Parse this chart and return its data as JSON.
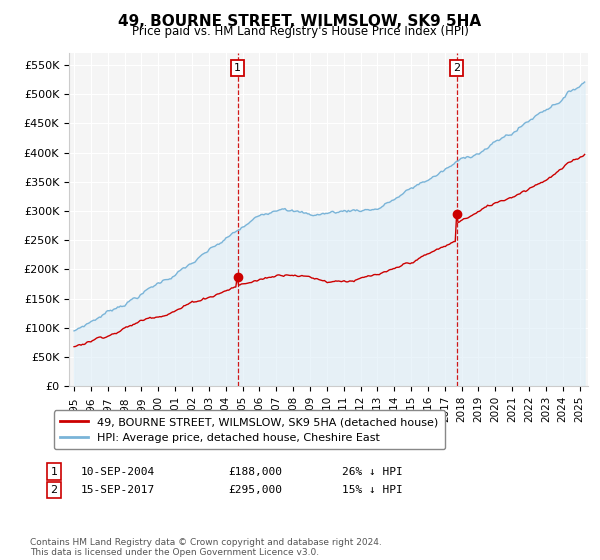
{
  "title": "49, BOURNE STREET, WILMSLOW, SK9 5HA",
  "subtitle": "Price paid vs. HM Land Registry's House Price Index (HPI)",
  "ylabel_ticks": [
    "£0",
    "£50K",
    "£100K",
    "£150K",
    "£200K",
    "£250K",
    "£300K",
    "£350K",
    "£400K",
    "£450K",
    "£500K",
    "£550K"
  ],
  "ytick_values": [
    0,
    50000,
    100000,
    150000,
    200000,
    250000,
    300000,
    350000,
    400000,
    450000,
    500000,
    550000
  ],
  "ylim": [
    0,
    570000
  ],
  "xlim_start": 1994.7,
  "xlim_end": 2025.5,
  "hpi_color": "#7ab4d8",
  "hpi_fill_color": "#ddeef7",
  "price_color": "#cc0000",
  "marker_color": "#cc0000",
  "sale1_x": 2004.71,
  "sale1_y": 188000,
  "sale1_label": "1",
  "sale1_date": "10-SEP-2004",
  "sale1_price": "£188,000",
  "sale1_hpi": "26% ↓ HPI",
  "sale2_x": 2017.71,
  "sale2_y": 295000,
  "sale2_label": "2",
  "sale2_date": "15-SEP-2017",
  "sale2_price": "£295,000",
  "sale2_hpi": "15% ↓ HPI",
  "legend_line1": "49, BOURNE STREET, WILMSLOW, SK9 5HA (detached house)",
  "legend_line2": "HPI: Average price, detached house, Cheshire East",
  "footnote": "Contains HM Land Registry data © Crown copyright and database right 2024.\nThis data is licensed under the Open Government Licence v3.0.",
  "bg_color": "#ffffff",
  "plot_bg_color": "#f5f5f5",
  "grid_color": "#ffffff"
}
